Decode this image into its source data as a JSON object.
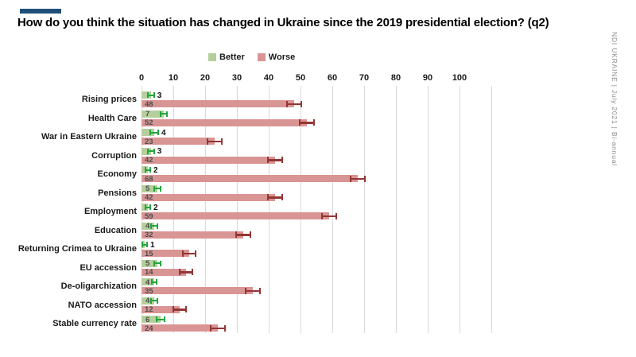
{
  "header": {
    "title": "How do you think the situation has changed in Ukraine since the 2019 presidential election? (q2)",
    "accent_color": "#1f4e79"
  },
  "side_note": "NDI UKRAINE | July 2021 | Bi-annual",
  "colors": {
    "better_bar": "#b5cf9b",
    "better_error": "#22a63e",
    "worse_bar": "#d99594",
    "worse_error": "#943634",
    "gridline": "#d9d9d9",
    "inside_value_label": "#4d4d4d",
    "outside_value_label": "#111111",
    "side_note_text": "#8a8a8a"
  },
  "chart_data": {
    "type": "bar",
    "orientation": "horizontal",
    "title": "How do you think the situation has changed in Ukraine since the 2019 presidential election? (q2)",
    "categories": [
      "Rising prices",
      "Health Care",
      "War in Eastern Ukraine",
      "Corruption",
      "Economy",
      "Pensions",
      "Employment",
      "Education",
      "Returning Crimea to Ukraine",
      "EU accession",
      "De-oligarchization",
      "NATO accession",
      "Stable currency rate"
    ],
    "series": [
      {
        "name": "Better",
        "color": "#b5cf9b",
        "error_color": "#22a63e",
        "values": [
          3,
          7,
          4,
          3,
          2,
          5,
          2,
          4,
          1,
          5,
          4,
          4,
          6
        ],
        "errors": [
          1.2,
          1.2,
          1.5,
          1.2,
          1.0,
          1.2,
          1.0,
          1.2,
          0.8,
          1.2,
          1.0,
          1.2,
          1.5
        ],
        "value_label_placement": [
          "outside",
          "inside",
          "outside",
          "outside",
          "outside",
          "inside",
          "outside",
          "inside",
          "outside",
          "inside",
          "inside",
          "inside",
          "inside"
        ]
      },
      {
        "name": "Worse",
        "color": "#d99594",
        "error_color": "#943634",
        "values": [
          48,
          52,
          23,
          42,
          68,
          42,
          59,
          32,
          15,
          14,
          35,
          12,
          24
        ],
        "errors": [
          2.6,
          2.4,
          2.6,
          2.4,
          2.6,
          2.6,
          2.6,
          2.4,
          2.2,
          2.2,
          2.6,
          2.2,
          2.6
        ],
        "value_label_placement": [
          "inside",
          "inside",
          "inside",
          "inside",
          "inside",
          "inside",
          "inside",
          "inside",
          "inside",
          "inside",
          "inside",
          "inside",
          "inside"
        ]
      }
    ],
    "x_ticks": [
      0,
      10,
      20,
      30,
      40,
      50,
      60,
      70,
      80,
      90,
      100
    ],
    "xlim": [
      0,
      110
    ],
    "grid": true,
    "legend_position": "top",
    "value_labels": true,
    "error_bars": true
  }
}
